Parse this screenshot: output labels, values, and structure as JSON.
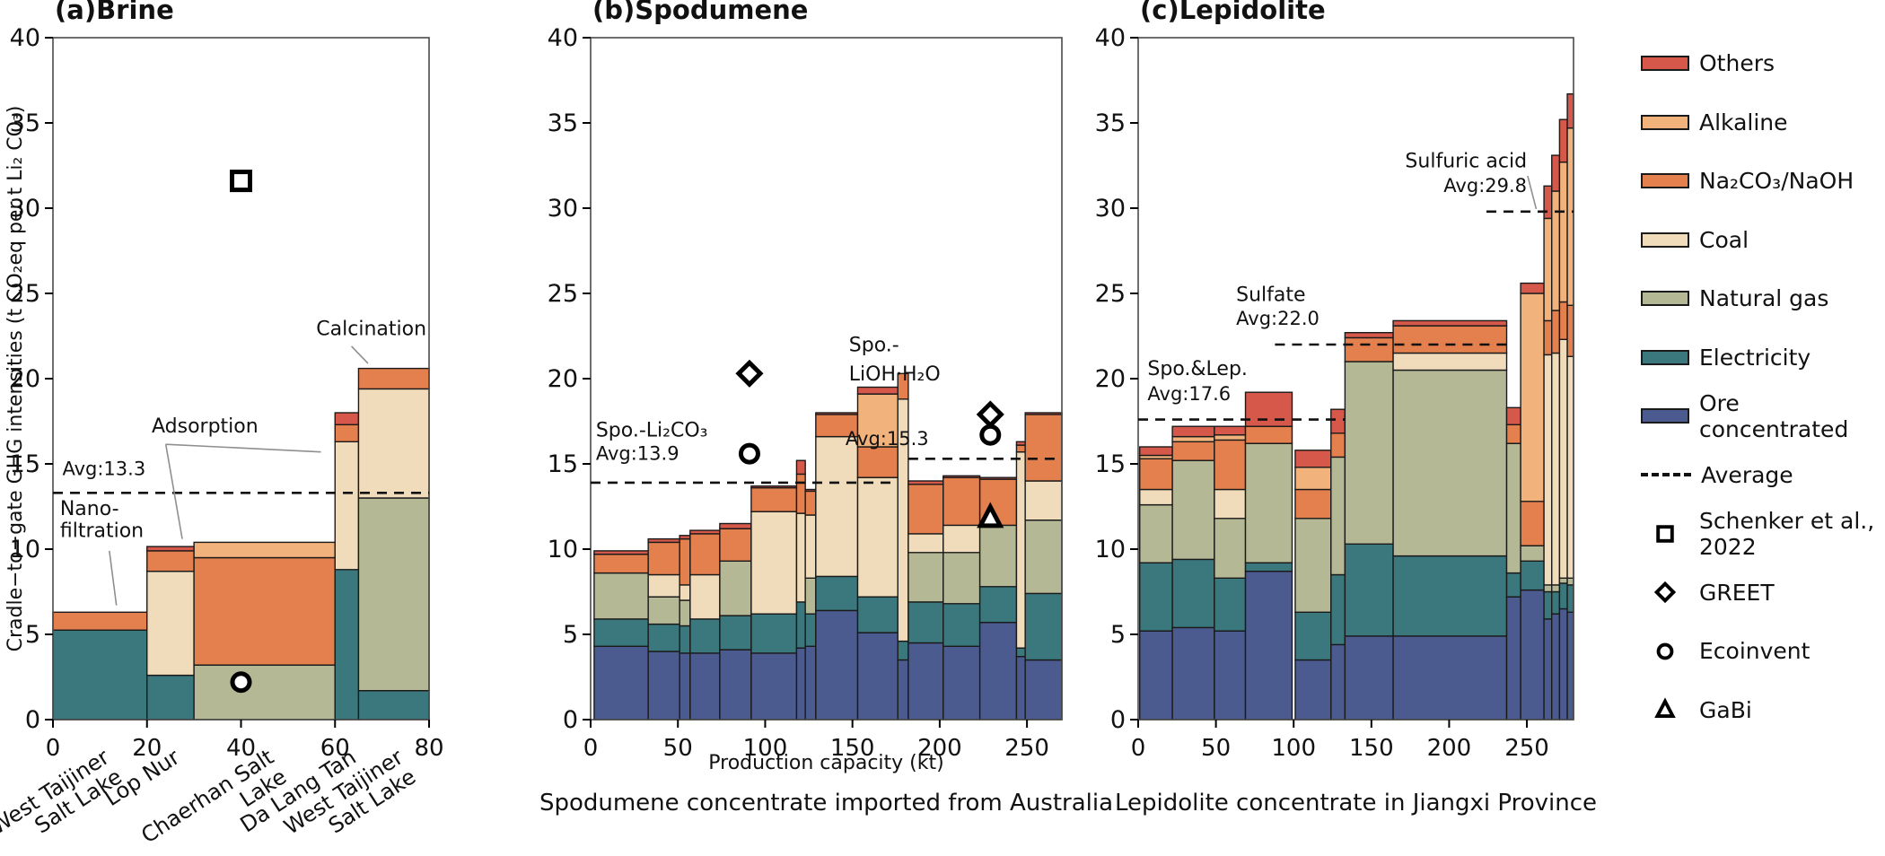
{
  "colors": {
    "others": "#d5584a",
    "alkaline": "#f2b27c",
    "na2co3": "#e4804e",
    "coal": "#f0dcba",
    "natural_gas": "#b5b894",
    "electricity": "#3a787e",
    "ore": "#4c5b8f",
    "edge": "#1a1a1a",
    "average": "#111111",
    "frame": "#4a4a4a",
    "leader": "#8f8f8f"
  },
  "legend": {
    "items": [
      {
        "type": "color",
        "key": "others",
        "label": "Others"
      },
      {
        "type": "color",
        "key": "alkaline",
        "label": "Alkaline"
      },
      {
        "type": "color",
        "key": "na2co3",
        "label": "Na₂CO₃/NaOH"
      },
      {
        "type": "color",
        "key": "coal",
        "label": "Coal"
      },
      {
        "type": "color",
        "key": "natural_gas",
        "label": "Natural gas"
      },
      {
        "type": "color",
        "key": "electricity",
        "label": "Electricity"
      },
      {
        "type": "color",
        "key": "ore",
        "label": "Ore concentrated"
      },
      {
        "type": "dash",
        "key": "average",
        "label": "Average"
      },
      {
        "type": "marker",
        "shape": "square",
        "label": "Schenker et al.,\n2022"
      },
      {
        "type": "marker",
        "shape": "diamond",
        "label": "GREET"
      },
      {
        "type": "marker",
        "shape": "circle",
        "label": "Ecoinvent"
      },
      {
        "type": "marker",
        "shape": "triangle",
        "label": "GaBi"
      }
    ]
  },
  "chart_data": {
    "type": "bar",
    "stacked": true,
    "ylabel": "Cradle−to−gate GHG intensities (t CO₂eq per t Li₂ CO₃)",
    "ylim": [
      0,
      40
    ],
    "yticks": [
      0,
      5,
      10,
      15,
      20,
      25,
      30,
      35,
      40
    ],
    "series_order": [
      "ore",
      "electricity",
      "natural_gas",
      "coal",
      "na2co3",
      "alkaline",
      "others"
    ],
    "panels": [
      {
        "id": "a",
        "title": "(a)Brine",
        "xlim": [
          0,
          80
        ],
        "xticks": [
          0,
          20,
          40,
          60,
          80
        ],
        "bars": [
          {
            "x0": 0,
            "x1": 20,
            "v": [
              0,
              5.25,
              0,
              0,
              1.05,
              0,
              0
            ]
          },
          {
            "x0": 20,
            "x1": 30,
            "v": [
              0,
              2.6,
              0,
              6.1,
              1.2,
              0,
              0.25
            ]
          },
          {
            "x0": 30,
            "x1": 60,
            "v": [
              0,
              0,
              3.2,
              0,
              6.3,
              0.9,
              0
            ]
          },
          {
            "x0": 60,
            "x1": 65,
            "v": [
              0,
              8.8,
              0,
              7.5,
              1.0,
              0,
              0.7
            ]
          },
          {
            "x0": 65,
            "x1": 80,
            "v": [
              0,
              1.7,
              11.3,
              6.4,
              1.2,
              0,
              0
            ]
          }
        ],
        "avg_lines": [
          {
            "value": 13.3,
            "x0": 0,
            "x1": 80
          }
        ],
        "markers": [
          {
            "shape": "square",
            "x": 40,
            "y": 31.6
          },
          {
            "shape": "circle",
            "x": 40,
            "y": 2.2
          }
        ],
        "annotations": [
          {
            "text": "Avg:13.3",
            "x": 2,
            "y": 14.35,
            "size": 21
          },
          {
            "text": "Nano-",
            "x": 1.5,
            "y": 12.0
          },
          {
            "text": "filtration",
            "x": 1.5,
            "y": 10.7
          },
          {
            "text": "Adsorption",
            "x": 21,
            "y": 16.85
          },
          {
            "text": "Calcination",
            "x": 56,
            "y": 22.55
          }
        ],
        "leaders": [
          [
            12,
            9.9,
            13.5,
            6.7
          ],
          [
            24,
            16.15,
            27.5,
            10.6
          ],
          [
            24,
            16.15,
            57,
            15.7
          ],
          [
            63.5,
            21.9,
            67,
            20.9
          ]
        ],
        "category_labels": [
          {
            "text": "West Taijiner\nSalt Lake",
            "x": 10
          },
          {
            "text": "Lop Nur",
            "x": 25
          },
          {
            "text": "Chaerhan Salt\nLake",
            "x": 45
          },
          {
            "text": "Da Lang Tan",
            "x": 62.5
          },
          {
            "text": "West Taijiner\nSalt Lake",
            "x": 72.5
          }
        ]
      },
      {
        "id": "b",
        "title": "(b)Spodumene",
        "xlim": [
          0,
          270
        ],
        "xticks": [
          0,
          50,
          100,
          150,
          200,
          250
        ],
        "xlabel": "Production capacity (kt)",
        "caption": "Spodumene concentrate imported from Australia",
        "bars": [
          {
            "x0": 2,
            "x1": 33,
            "v": [
              4.3,
              1.6,
              2.7,
              0,
              1.1,
              0,
              0.2
            ]
          },
          {
            "x0": 33,
            "x1": 51,
            "v": [
              4.0,
              1.6,
              1.6,
              1.3,
              1.9,
              0,
              0.2
            ]
          },
          {
            "x0": 51,
            "x1": 57,
            "v": [
              3.9,
              1.6,
              1.5,
              0.9,
              2.7,
              0,
              0.2
            ]
          },
          {
            "x0": 57,
            "x1": 74,
            "v": [
              3.9,
              2.0,
              0,
              2.6,
              2.4,
              0,
              0.2
            ]
          },
          {
            "x0": 74,
            "x1": 92,
            "v": [
              4.1,
              2.0,
              3.2,
              0,
              1.9,
              0,
              0.3
            ]
          },
          {
            "x0": 92,
            "x1": 118,
            "v": [
              3.9,
              2.3,
              0,
              6.0,
              1.4,
              0,
              0.1
            ]
          },
          {
            "x0": 118,
            "x1": 123,
            "v": [
              4.2,
              2.7,
              0,
              5.2,
              2.3,
              0,
              0.8
            ]
          },
          {
            "x0": 123,
            "x1": 129,
            "v": [
              4.3,
              1.9,
              2.1,
              3.7,
              1.4,
              0,
              0.1
            ]
          },
          {
            "x0": 129,
            "x1": 153,
            "v": [
              6.4,
              2.0,
              0,
              8.2,
              1.3,
              0,
              0.1
            ]
          },
          {
            "x0": 153,
            "x1": 176,
            "v": [
              5.1,
              2.1,
              0,
              7.0,
              1.8,
              3.1,
              0.4
            ]
          },
          {
            "x0": 176,
            "x1": 182,
            "v": [
              3.5,
              1.1,
              0,
              14.2,
              1.5,
              0,
              0
            ]
          },
          {
            "x0": 182,
            "x1": 202,
            "v": [
              4.5,
              2.4,
              2.9,
              1.1,
              2.9,
              0,
              0.2
            ]
          },
          {
            "x0": 202,
            "x1": 223,
            "v": [
              4.3,
              2.5,
              3.0,
              1.6,
              2.8,
              0,
              0.1
            ]
          },
          {
            "x0": 223,
            "x1": 244,
            "v": [
              5.7,
              2.1,
              3.6,
              0,
              2.7,
              0,
              0.1
            ]
          },
          {
            "x0": 244,
            "x1": 249,
            "v": [
              3.7,
              0.5,
              0,
              11.5,
              0.4,
              0,
              0.2
            ]
          },
          {
            "x0": 249,
            "x1": 270,
            "v": [
              3.5,
              3.9,
              4.3,
              2.3,
              3.9,
              0,
              0.1
            ]
          }
        ],
        "avg_lines": [
          {
            "value": 13.9,
            "x0": 0,
            "x1": 176
          },
          {
            "value": 15.3,
            "x0": 182,
            "x1": 270
          }
        ],
        "markers": [
          {
            "shape": "diamond",
            "x": 91,
            "y": 20.3
          },
          {
            "shape": "circle",
            "x": 91,
            "y": 15.6
          },
          {
            "shape": "diamond",
            "x": 229,
            "y": 17.9
          },
          {
            "shape": "circle",
            "x": 229,
            "y": 16.7
          },
          {
            "shape": "triangle",
            "x": 229,
            "y": 11.85
          }
        ],
        "annotations": [
          {
            "text": "Spo.-Li₂CO₃",
            "x": 3,
            "y": 16.6
          },
          {
            "text": "Avg:13.9",
            "x": 3,
            "y": 15.25,
            "size": 21
          },
          {
            "text": "Spo.-",
            "x": 148,
            "y": 21.6
          },
          {
            "text": "LiOH·H₂O",
            "x": 148,
            "y": 19.9
          },
          {
            "text": "Avg:15.3",
            "x": 146,
            "y": 16.1,
            "size": 21
          }
        ],
        "leaders": []
      },
      {
        "id": "c",
        "title": "(c)Lepidolite",
        "xlim": [
          0,
          280
        ],
        "xticks": [
          0,
          50,
          100,
          150,
          200,
          250
        ],
        "caption": "Lepidolite concentrate in Jiangxi Province",
        "bars": [
          {
            "x0": 1,
            "x1": 22,
            "v": [
              5.2,
              4.0,
              3.4,
              0.9,
              1.8,
              0.2,
              0.5
            ]
          },
          {
            "x0": 22,
            "x1": 49,
            "v": [
              5.4,
              4.0,
              5.8,
              0,
              1.1,
              0.3,
              0.6
            ]
          },
          {
            "x0": 49,
            "x1": 69,
            "v": [
              5.2,
              3.1,
              3.5,
              1.7,
              2.9,
              0.3,
              0.5
            ]
          },
          {
            "x0": 69,
            "x1": 99,
            "v": [
              8.7,
              0.5,
              7.0,
              0,
              1.0,
              0,
              2.0
            ]
          },
          {
            "x0": 101,
            "x1": 124,
            "v": [
              3.5,
              2.8,
              5.5,
              0,
              1.7,
              1.3,
              1.0
            ]
          },
          {
            "x0": 124,
            "x1": 133,
            "v": [
              4.4,
              4.1,
              6.9,
              0,
              1.4,
              0,
              1.4
            ]
          },
          {
            "x0": 133,
            "x1": 164,
            "v": [
              4.9,
              5.4,
              10.7,
              0,
              1.4,
              0,
              0.3
            ]
          },
          {
            "x0": 164,
            "x1": 237,
            "v": [
              4.9,
              4.7,
              10.9,
              1.0,
              1.6,
              0,
              0.3
            ]
          },
          {
            "x0": 237,
            "x1": 246,
            "v": [
              7.2,
              1.4,
              7.6,
              0,
              1.1,
              0,
              1.0
            ]
          },
          {
            "x0": 246,
            "x1": 261,
            "v": [
              7.6,
              1.7,
              0.9,
              0,
              2.6,
              12.2,
              0.6
            ]
          },
          {
            "x0": 261,
            "x1": 266,
            "v": [
              5.9,
              1.6,
              0.4,
              13.5,
              2.0,
              6.0,
              1.9
            ]
          },
          {
            "x0": 266,
            "x1": 271,
            "v": [
              6.2,
              1.3,
              0.4,
              13.6,
              2.5,
              7.0,
              2.1
            ]
          },
          {
            "x0": 271,
            "x1": 276,
            "v": [
              6.5,
              1.5,
              0.3,
              14.0,
              2.2,
              8.2,
              2.5
            ]
          },
          {
            "x0": 276,
            "x1": 280,
            "v": [
              6.3,
              1.6,
              0.4,
              13.0,
              3.0,
              10.4,
              2.0
            ]
          }
        ],
        "avg_lines": [
          {
            "value": 17.6,
            "x0": 0,
            "x1": 133
          },
          {
            "value": 22.0,
            "x0": 88,
            "x1": 237
          },
          {
            "value": 29.8,
            "x0": 224,
            "x1": 280
          }
        ],
        "markers": [],
        "annotations": [
          {
            "text": "Spo.&Lep.",
            "x": 6,
            "y": 20.2
          },
          {
            "text": "Avg:17.6",
            "x": 6,
            "y": 18.75,
            "size": 21
          },
          {
            "text": "Sulfate",
            "x": 63,
            "y": 24.55
          },
          {
            "text": "Avg:22.0",
            "x": 63,
            "y": 23.15,
            "size": 21
          },
          {
            "text": "Sulfuric acid",
            "x": 250,
            "y": 32.4,
            "anchor": "end"
          },
          {
            "text": "Avg:29.8",
            "x": 250,
            "y": 30.95,
            "anchor": "end",
            "size": 21
          }
        ],
        "leaders": [
          [
            250.5,
            31.9,
            256,
            29.95
          ]
        ]
      }
    ]
  }
}
